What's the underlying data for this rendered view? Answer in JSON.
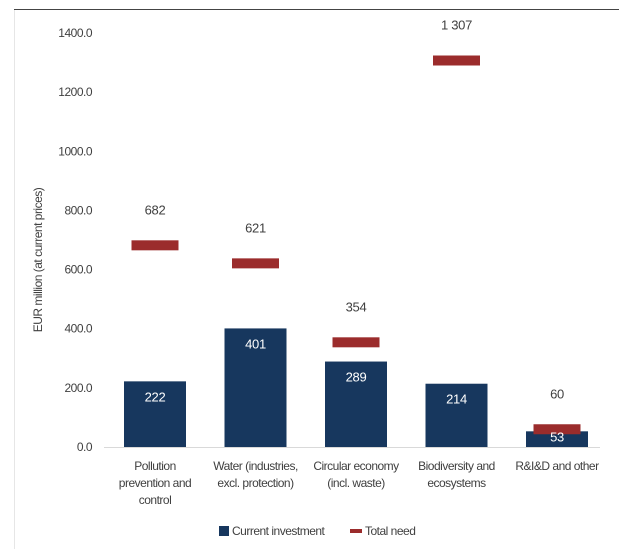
{
  "chart_data": {
    "type": "bar",
    "ylabel": "EUR million (at current prices)",
    "ylim": [
      0,
      1400
    ],
    "yticks": [
      "0.0",
      "200.0",
      "400.0",
      "600.0",
      "800.0",
      "1000.0",
      "1200.0",
      "1400.0"
    ],
    "categories": [
      [
        "Pollution",
        "prevention and",
        "control"
      ],
      [
        "Water (industries,",
        "excl. protection)"
      ],
      [
        "Circular economy",
        "(incl. waste)"
      ],
      [
        "Biodiversity and",
        "ecosystems"
      ],
      [
        "R&I&D and other"
      ]
    ],
    "series": [
      {
        "name": "Current investment",
        "values": [
          222,
          401,
          289,
          214,
          53
        ],
        "labels": [
          "222",
          "401",
          "289",
          "214",
          "53"
        ],
        "color": "#17375e"
      },
      {
        "name": "Total need",
        "values": [
          682,
          621,
          354,
          1307,
          60
        ],
        "labels": [
          "682",
          "621",
          "354",
          "1 307",
          "60"
        ],
        "color": "#9b2c2c"
      }
    ],
    "legend_position": "bottom",
    "grid": false
  }
}
